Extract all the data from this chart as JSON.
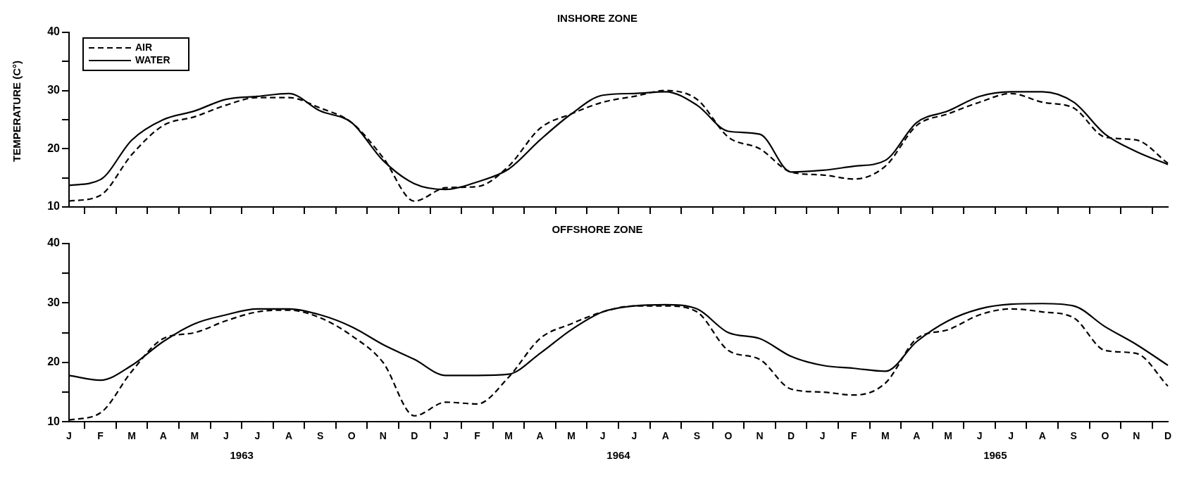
{
  "chart_data": [
    {
      "type": "line",
      "title": "INSHORE ZONE",
      "ylabel": "TEMPERATURE (C°)",
      "categories": [
        null,
        null,
        null,
        null,
        null,
        null,
        null,
        null,
        null,
        null,
        null,
        null,
        null,
        null,
        null,
        null,
        null,
        null,
        null,
        null,
        null,
        null,
        null,
        null,
        null,
        null,
        null,
        null,
        null,
        null,
        null,
        null,
        null,
        null,
        null,
        null
      ],
      "series": [
        {
          "name": "AIR",
          "color": "#000000",
          "line_style": "dashed",
          "values": [
            11,
            12,
            19,
            24,
            25.5,
            27.5,
            28.8,
            28.8,
            27,
            24.5,
            18.5,
            11,
            13.3,
            13.5,
            17,
            23.5,
            26,
            28,
            29,
            30,
            28.5,
            22,
            20,
            16,
            15.5,
            14.8,
            17,
            24,
            26,
            28,
            29.5,
            28,
            27,
            22,
            21.5,
            17.5
          ]
        },
        {
          "name": "WATER",
          "color": "#000000",
          "line_style": "solid",
          "values": [
            13.7,
            14.7,
            21.5,
            25,
            26.5,
            28.5,
            29,
            29.5,
            26.5,
            24.5,
            18,
            14,
            13,
            14.3,
            16.5,
            21.5,
            26,
            29.2,
            29.5,
            29.8,
            27.5,
            23,
            22.5,
            16,
            16.3,
            17,
            18,
            24.5,
            26.5,
            29,
            29.8,
            29.8,
            28,
            22.5,
            19.5,
            17.3
          ]
        }
      ],
      "ylim": [
        10,
        40
      ],
      "yticks": [
        10,
        {
          "value": 15,
          "label": null
        },
        20,
        {
          "value": 25,
          "label": null
        },
        30,
        {
          "value": 35,
          "label": null
        },
        40
      ],
      "tick_labels": "y",
      "grid": false,
      "legend": "top left",
      "marker": "none"
    },
    {
      "type": "line",
      "title": "OFFSHORE ZONE",
      "categories": [
        "J",
        "F",
        "M",
        "A",
        "M",
        "J",
        "J",
        "A",
        "S",
        "O",
        "N",
        "D",
        "J",
        "F",
        "M",
        "A",
        "M",
        "J",
        "J",
        "A",
        "S",
        "O",
        "N",
        "D",
        "J",
        "F",
        "M",
        "A",
        "M",
        "J",
        "J",
        "A",
        "S",
        "O",
        "N",
        "D"
      ],
      "series": [
        {
          "color": "#000000",
          "line_style": "dashed",
          "values": [
            10.3,
            11.5,
            18.5,
            24,
            25,
            27,
            28.5,
            28.8,
            27.5,
            24.5,
            20,
            11,
            13.3,
            13,
            17.5,
            24,
            26.5,
            28.5,
            29.5,
            29.5,
            28.5,
            22,
            20.5,
            15.5,
            15,
            14.5,
            16.5,
            24,
            25.5,
            28,
            29,
            28.5,
            27.5,
            22,
            21.5,
            16
          ]
        },
        {
          "color": "#000000",
          "line_style": "solid",
          "values": [
            17.8,
            17,
            19.5,
            23.5,
            26.5,
            28,
            29,
            29,
            28,
            26,
            23,
            20.5,
            17.8,
            17.8,
            18,
            21.5,
            25.5,
            28.5,
            29.5,
            29.7,
            29,
            25,
            24,
            21,
            19.5,
            19,
            18.5,
            23.5,
            27,
            29,
            29.8,
            29.9,
            29.5,
            26,
            23,
            19.5
          ]
        }
      ],
      "ylim": [
        10,
        40
      ],
      "yticks": [
        10,
        {
          "value": 15,
          "label": null
        },
        20,
        {
          "value": 25,
          "label": null
        },
        30,
        {
          "value": 35,
          "label": null
        },
        40
      ],
      "grid": false,
      "legend": false,
      "marker": "none",
      "annotations": [
        "1963",
        "1964",
        "1965"
      ]
    }
  ]
}
